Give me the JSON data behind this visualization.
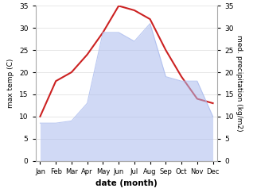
{
  "months": [
    "Jan",
    "Feb",
    "Mar",
    "Apr",
    "May",
    "Jun",
    "Jul",
    "Aug",
    "Sep",
    "Oct",
    "Nov",
    "Dec"
  ],
  "temperature": [
    10,
    18,
    20,
    24,
    29,
    35,
    34,
    32,
    25,
    19,
    14,
    13
  ],
  "precipitation": [
    8.5,
    8.5,
    9,
    13,
    29,
    29,
    27,
    31,
    19,
    18,
    18,
    10
  ],
  "temp_color": "#cc2222",
  "precip_color": "#aabbee",
  "precip_fill_alpha": 0.55,
  "ylabel_left": "max temp (C)",
  "ylabel_right": "med. precipitation (kg/m2)",
  "xlabel": "date (month)",
  "ylim_left": [
    0,
    35
  ],
  "ylim_right": [
    0,
    35
  ],
  "yticks": [
    0,
    5,
    10,
    15,
    20,
    25,
    30,
    35
  ],
  "background_color": "#ffffff",
  "spine_color": "#aaaaaa",
  "grid_color": "#dddddd"
}
